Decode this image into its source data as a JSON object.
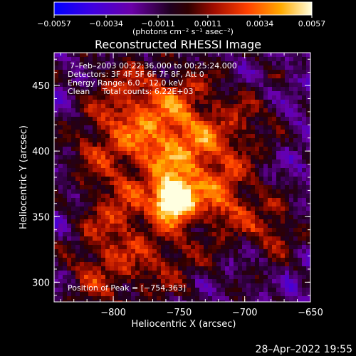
{
  "chart_data": {
    "type": "heatmap",
    "title": "Reconstructed RHESSI Image",
    "xlabel": "Heliocentric X (arcsec)",
    "ylabel": "Heliocentric Y (arcsec)",
    "xlim": [
      -845,
      -650
    ],
    "ylim": [
      285,
      475
    ],
    "x_ticks": [
      -800,
      -750,
      -700,
      -650
    ],
    "x_tick_labels": [
      "−800",
      "−750",
      "−700",
      "−650"
    ],
    "y_ticks": [
      300,
      350,
      400,
      450
    ],
    "y_tick_labels": [
      "300",
      "350",
      "400",
      "450"
    ],
    "colorbar": {
      "range": [
        -0.0057,
        0.0057
      ],
      "ticks": [
        -0.0057,
        -0.0034,
        -0.0011,
        0.0011,
        0.0034,
        0.0057
      ],
      "tick_labels": [
        "−0.0057",
        "−0.0034",
        "−0.0011",
        "0.0011",
        "0.0034",
        "0.0057"
      ],
      "unit_label": "(photons cm⁻² s⁻¹ asec⁻²)",
      "colors": [
        "#0000ff",
        "#7000b0",
        "#300030",
        "#000000",
        "#a01000",
        "#ff5000",
        "#ffb000",
        "#ffffd0"
      ]
    },
    "annotations": [
      "7–Feb–2003 00:22:36.000 to 00:25:24.000",
      "Detectors: 3F 4F 5F 6F 7F 8F, Att 0",
      "Energy Range: 6.0 – 12.0 keV",
      "Clean     Total counts: 6.22E+03"
    ],
    "peak_label": "Position of Peak = [−754,363]",
    "peak": {
      "x": -754,
      "y": 363,
      "value": 0.0057
    },
    "grid": false
  },
  "timestamp": "28–Apr–2022 19:55"
}
